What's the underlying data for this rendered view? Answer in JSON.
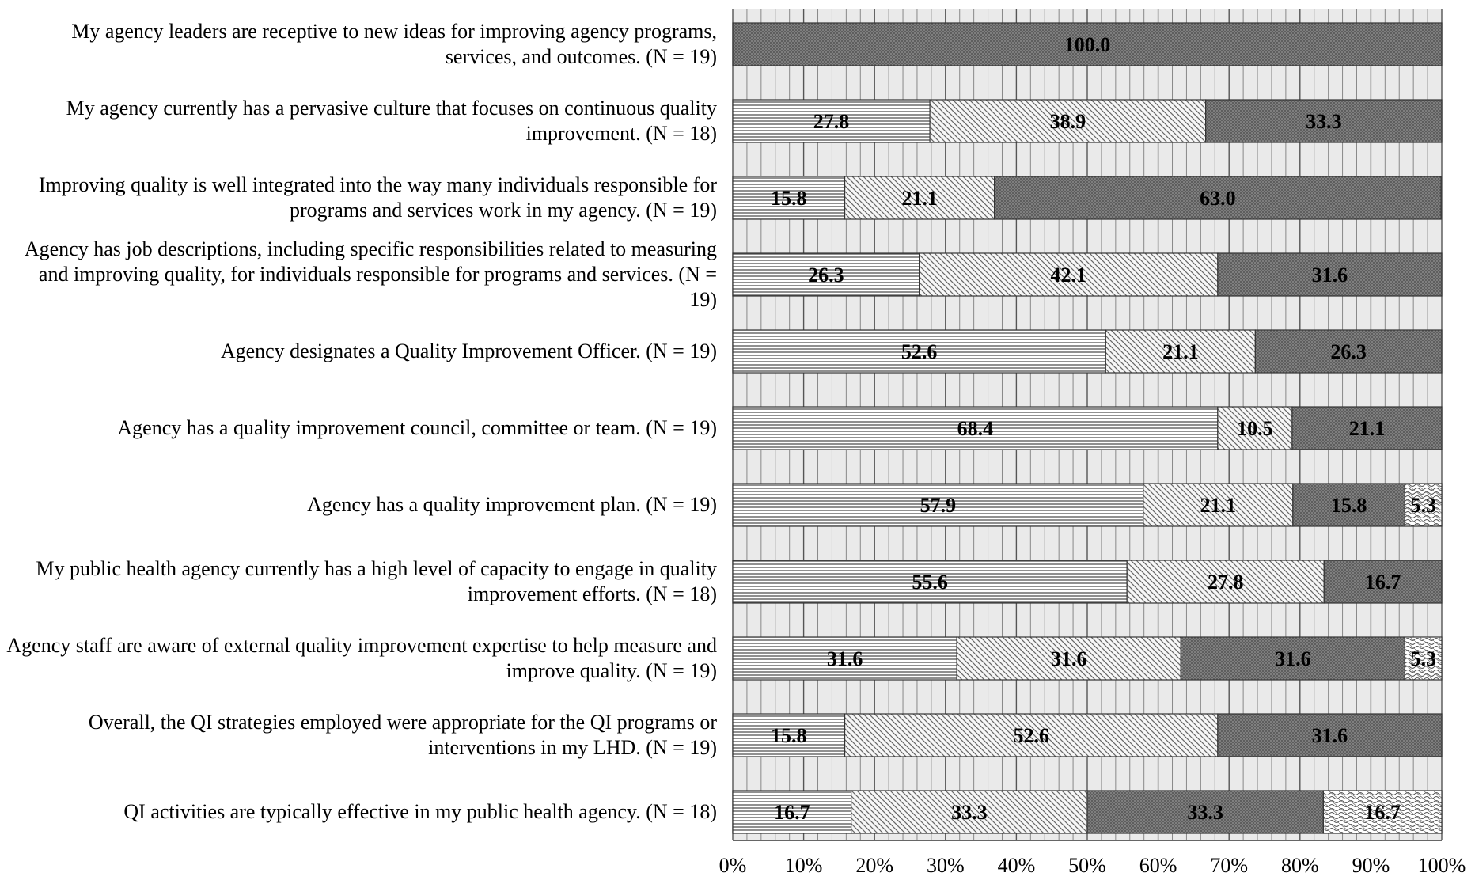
{
  "chart_data": {
    "type": "bar",
    "orientation": "horizontal",
    "stacked": true,
    "stack_mode": "percent",
    "categories": [
      "My agency leaders are receptive to new ideas for improving agency programs, services, and outcomes. (N = 19)",
      "My agency currently has a pervasive culture that focuses on continuous quality improvement. (N = 18)",
      "Improving quality is well integrated into the way many individuals responsible for programs and services work in my agency. (N = 19)",
      "Agency has job descriptions, including specific responsibilities related to measuring and improving quality, for individuals responsible for programs and services. (N = 19)",
      "Agency designates a Quality Improvement Officer. (N = 19)",
      "Agency has a quality improvement council, committee or team. (N = 19)",
      "Agency has a quality improvement plan. (N = 19)",
      "My public health agency currently has a high level of capacity to engage in quality improvement efforts. (N = 18)",
      "Agency staff are aware of external quality improvement expertise to help measure and improve quality. (N = 19)",
      "Overall, the QI strategies employed were appropriate for the QI programs or interventions in my LHD. (N = 19)",
      "QI activities are typically effective in my public health agency. (N = 18)"
    ],
    "series": [
      {
        "values": [
          0,
          27.8,
          15.8,
          26.3,
          52.6,
          68.4,
          57.9,
          55.6,
          31.6,
          15.8,
          16.7
        ],
        "pattern": "horizontal-lines"
      },
      {
        "values": [
          0,
          38.9,
          21.1,
          42.1,
          21.1,
          10.5,
          21.1,
          27.8,
          31.6,
          52.6,
          33.3
        ],
        "pattern": "diagonal-lines"
      },
      {
        "values": [
          100.0,
          33.3,
          63.0,
          31.6,
          26.3,
          21.1,
          15.8,
          16.7,
          31.6,
          31.6,
          33.3
        ],
        "pattern": "dense-crosshatch"
      },
      {
        "values": [
          0,
          0,
          0,
          0,
          0,
          0,
          5.3,
          0,
          5.3,
          0,
          16.7
        ],
        "pattern": "wave-crosshatch"
      }
    ],
    "xticks": [
      "0%",
      "10%",
      "20%",
      "30%",
      "40%",
      "50%",
      "60%",
      "70%",
      "80%",
      "90%",
      "100%"
    ],
    "xlim": [
      0,
      100
    ],
    "grid": "vertical",
    "legend": "none",
    "colors": {
      "plot_bg": "#eaeaea",
      "grid_major": "#555555",
      "grid_minor": "#888888",
      "bar_outline": "#333333"
    }
  }
}
